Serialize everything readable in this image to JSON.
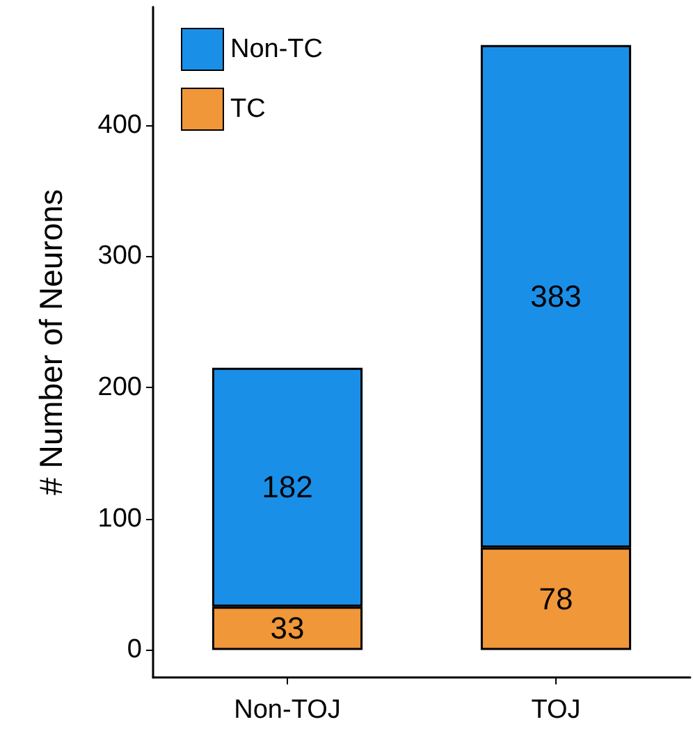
{
  "chart_data": {
    "type": "bar",
    "ylabel": "# Number of Neurons",
    "categories": [
      "Non-TOJ",
      "TOJ"
    ],
    "stacked": true,
    "series": [
      {
        "name": "TC",
        "color": "#f0973a",
        "values": [
          33,
          78
        ]
      },
      {
        "name": "Non-TC",
        "color": "#1a8fe8",
        "values": [
          182,
          383
        ]
      }
    ],
    "ylim": [
      -21,
      490
    ],
    "yticks": [
      0,
      100,
      200,
      300,
      400
    ],
    "data_labels": true,
    "grid": false,
    "legend": "top left"
  }
}
